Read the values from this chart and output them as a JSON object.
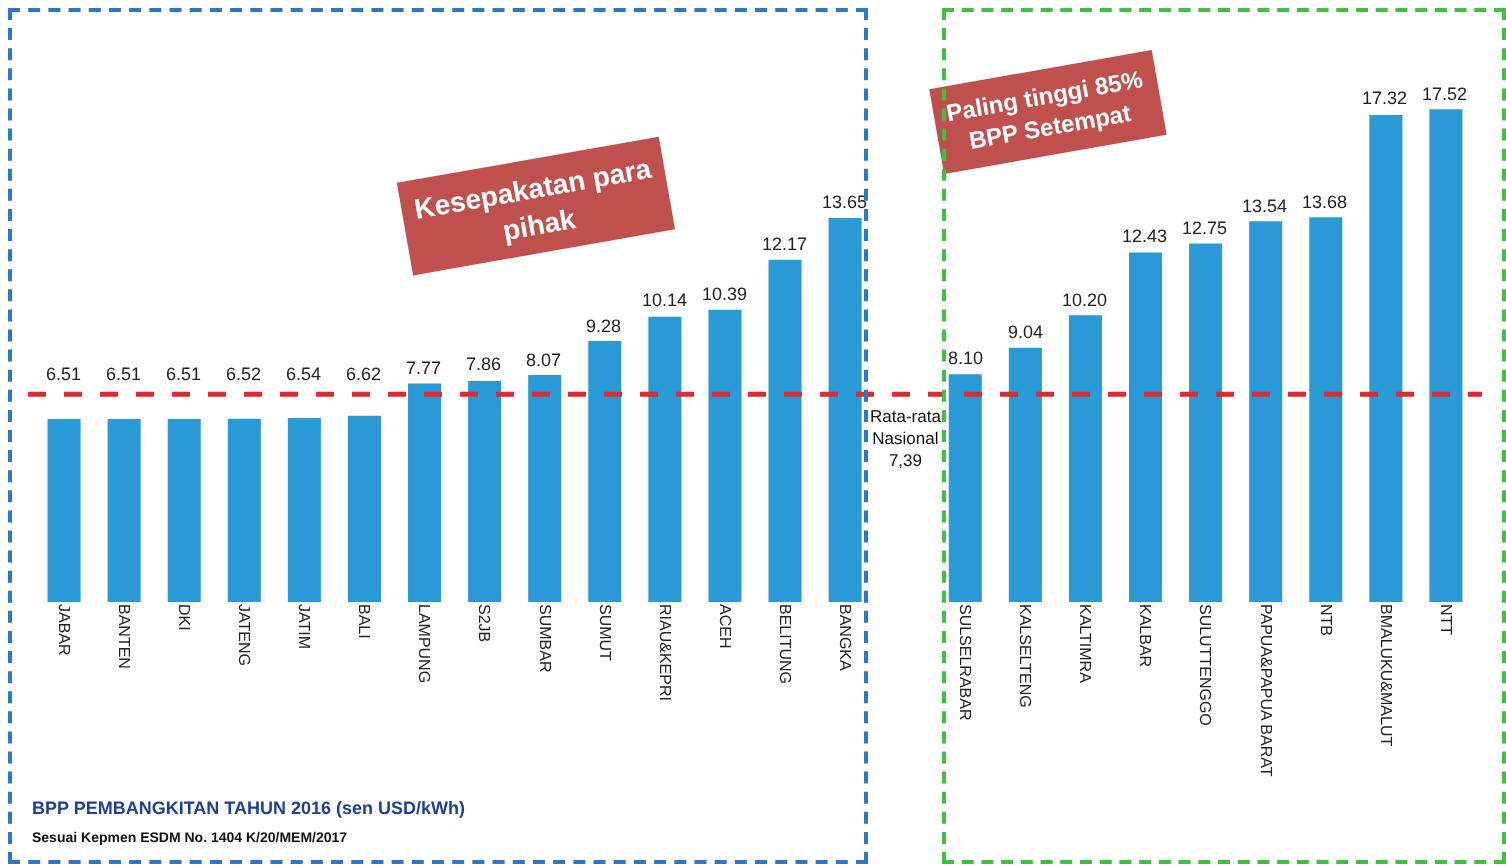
{
  "chart_data": {
    "type": "bar",
    "categories": [
      "JABAR",
      "BANTEN",
      "DKI",
      "JATENG",
      "JATIM",
      "BALI",
      "LAMPUNG",
      "S2JB",
      "SUMBAR",
      "SUMUT",
      "RIAU&KEPRI",
      "ACEH",
      "BELITUNG",
      "BANGKA",
      null,
      "SULSELRABAR",
      "KALSELTENG",
      "KALTIMRA",
      "KALBAR",
      "SULUTTENGGO",
      "PAPUA&PAPUA BARAT",
      "NTB",
      "BMALUKU&MALUT",
      "NTT"
    ],
    "values": [
      6.51,
      6.51,
      6.51,
      6.52,
      6.54,
      6.62,
      7.77,
      7.86,
      8.07,
      9.28,
      10.14,
      10.39,
      12.17,
      13.65,
      null,
      8.1,
      9.04,
      10.2,
      12.43,
      12.75,
      13.54,
      13.68,
      17.32,
      17.52
    ],
    "value_labels": [
      "6.51",
      "6.51",
      "6.51",
      "6.52",
      "6.54",
      "6.62",
      "7.77",
      "7.86",
      "8.07",
      "9.28",
      "10.14",
      "10.39",
      "12.17",
      "13.65",
      null,
      "8.10",
      "9.04",
      "10.20",
      "12.43",
      "12.75",
      "13.54",
      "13.68",
      "17.32",
      "17.52"
    ],
    "color": "#2a9ad6",
    "ref_lines": [
      {
        "axis": "y",
        "value": 7.39,
        "label": "Rata-rata Nasional 7,39",
        "color": "#e0282e",
        "line_style": "dashed"
      }
    ],
    "annotations": [
      "Kesepakatan para pihak",
      "Paling tinggi 85% BPP Setempat",
      "BPP PEMBANGKITAN TAHUN 2016 (sen USD/kWh)",
      "Sesuai Kepmen ESDM No. 1404 K/20/MEM/2017"
    ],
    "grid": false
  }
}
